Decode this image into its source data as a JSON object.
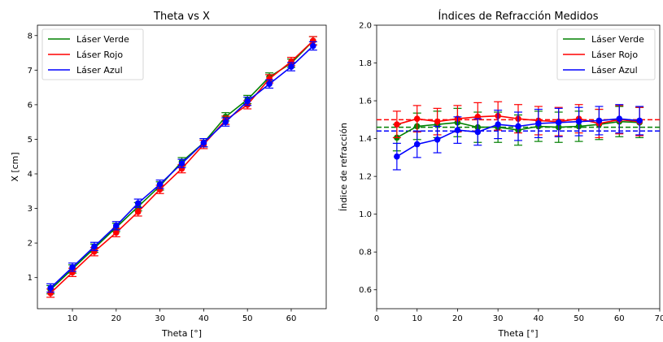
{
  "chart_data": [
    {
      "type": "line",
      "title": "Theta vs X",
      "xlabel": "Theta [°]",
      "ylabel": "X [cm]",
      "xlim": [
        2,
        68
      ],
      "ylim": [
        0.1,
        8.3
      ],
      "xticks": [
        10,
        20,
        30,
        40,
        50,
        60
      ],
      "yticks": [
        1,
        2,
        3,
        4,
        5,
        6,
        7,
        8
      ],
      "grid": false,
      "legend": "upper-left",
      "x": [
        5,
        10,
        15,
        20,
        25,
        30,
        35,
        40,
        45,
        50,
        55,
        60,
        65
      ],
      "series": [
        {
          "name": "Láser Verde",
          "color": "#008000",
          "values": [
            0.65,
            1.25,
            1.85,
            2.45,
            3.05,
            3.65,
            4.35,
            4.9,
            5.65,
            6.15,
            6.8,
            7.2,
            7.85
          ],
          "errors": [
            0.12,
            0.12,
            0.12,
            0.12,
            0.12,
            0.12,
            0.12,
            0.12,
            0.12,
            0.12,
            0.12,
            0.12,
            0.12
          ]
        },
        {
          "name": "Láser Rojo",
          "color": "#ff0000",
          "values": [
            0.55,
            1.15,
            1.75,
            2.3,
            2.9,
            3.55,
            4.15,
            4.85,
            5.55,
            6.0,
            6.75,
            7.25,
            7.85
          ],
          "errors": [
            0.12,
            0.12,
            0.12,
            0.12,
            0.12,
            0.12,
            0.12,
            0.12,
            0.12,
            0.12,
            0.12,
            0.12,
            0.12
          ]
        },
        {
          "name": "Láser Azul",
          "color": "#0000ff",
          "values": [
            0.7,
            1.3,
            1.9,
            2.5,
            3.15,
            3.7,
            4.3,
            4.9,
            5.5,
            6.1,
            6.6,
            7.1,
            7.7
          ],
          "errors": [
            0.12,
            0.12,
            0.12,
            0.12,
            0.12,
            0.12,
            0.12,
            0.12,
            0.12,
            0.12,
            0.12,
            0.12,
            0.12
          ]
        }
      ]
    },
    {
      "type": "line",
      "title": "Índices de Refracción Medidos",
      "xlabel": "Theta [°]",
      "ylabel": "Índice de refracción",
      "xlim": [
        0,
        70
      ],
      "ylim": [
        0.5,
        2.0
      ],
      "xticks": [
        0,
        10,
        20,
        30,
        40,
        50,
        60,
        70
      ],
      "yticks": [
        0.6,
        0.8,
        1.0,
        1.2,
        1.4,
        1.6,
        1.8,
        2.0
      ],
      "ytick_labels": [
        "0.6",
        "0.8",
        "1.0",
        "1.2",
        "1.4",
        "1.6",
        "1.8",
        "2.0"
      ],
      "grid": false,
      "legend": "upper-right",
      "x": [
        5,
        10,
        15,
        20,
        25,
        30,
        35,
        40,
        45,
        50,
        55,
        60,
        65
      ],
      "series": [
        {
          "name": "Láser Verde",
          "color": "#008000",
          "mean_line": 1.46,
          "values": [
            1.405,
            1.465,
            1.475,
            1.485,
            1.46,
            1.46,
            1.445,
            1.465,
            1.46,
            1.465,
            1.475,
            1.49,
            1.485
          ],
          "errors": [
            0.07,
            0.07,
            0.07,
            0.075,
            0.08,
            0.08,
            0.08,
            0.08,
            0.08,
            0.08,
            0.08,
            0.08,
            0.08
          ]
        },
        {
          "name": "Láser Rojo",
          "color": "#ff0000",
          "mean_line": 1.5,
          "values": [
            1.475,
            1.505,
            1.49,
            1.505,
            1.515,
            1.52,
            1.505,
            1.495,
            1.49,
            1.505,
            1.48,
            1.5,
            1.49
          ],
          "errors": [
            0.07,
            0.07,
            0.07,
            0.07,
            0.075,
            0.075,
            0.075,
            0.075,
            0.075,
            0.075,
            0.075,
            0.075,
            0.075
          ]
        },
        {
          "name": "Láser Azul",
          "color": "#0000ff",
          "mean_line": 1.44,
          "values": [
            1.305,
            1.37,
            1.395,
            1.445,
            1.435,
            1.475,
            1.465,
            1.48,
            1.485,
            1.49,
            1.495,
            1.505,
            1.495
          ],
          "errors": [
            0.07,
            0.07,
            0.07,
            0.07,
            0.07,
            0.075,
            0.075,
            0.075,
            0.075,
            0.075,
            0.075,
            0.075,
            0.075
          ]
        }
      ]
    }
  ]
}
